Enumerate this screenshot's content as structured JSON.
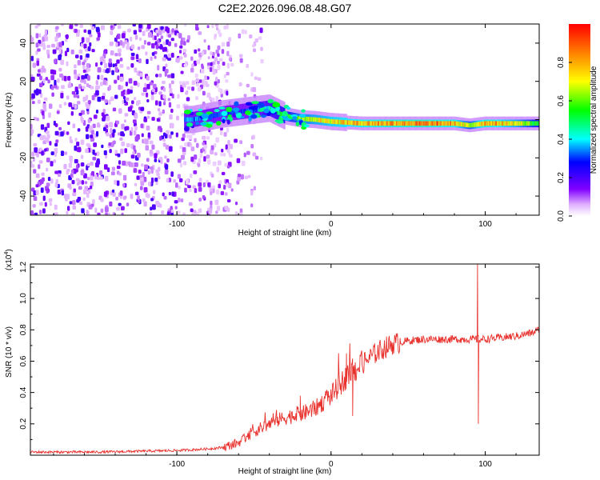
{
  "title": "C2E2.2026.096.08.48.G07",
  "colors": {
    "snr_line": "#e8302c",
    "frame": "#000000",
    "background": "#ffffff"
  },
  "chart_data": [
    {
      "type": "heatmap",
      "title": "C2E2.2026.096.08.48.G07",
      "xlabel": "Height of straight line (km)",
      "ylabel": "Frequency (Hz)",
      "xlim": [
        -195,
        135
      ],
      "ylim": [
        -50,
        50
      ],
      "xticks": [
        -100,
        0,
        100
      ],
      "xtick_labels": [
        "-100",
        "0",
        "100"
      ],
      "yticks": [
        -40,
        -20,
        0,
        20,
        40
      ],
      "ytick_labels": [
        "-40",
        "-20",
        "0",
        "20",
        "40"
      ],
      "colorbar": {
        "label": "Normalized spectral amplitude",
        "range": [
          0.0,
          1.0
        ],
        "ticks": [
          0.0,
          0.2,
          0.4,
          0.6,
          0.8
        ],
        "tick_labels": [
          "0.0",
          "0.2",
          "0.4",
          "0.6",
          "0.8"
        ]
      },
      "ridge": {
        "description_points_height_km": [
          -90,
          -70,
          -50,
          -40,
          -30,
          -20,
          -10,
          0,
          20,
          40,
          60,
          80,
          90,
          100,
          120,
          135
        ],
        "frequency_hz": [
          0,
          3,
          5,
          6,
          2,
          0.5,
          0,
          -1,
          -2,
          -2,
          -2,
          -2,
          -3,
          -2,
          -2,
          -2
        ],
        "amplitude": [
          0.4,
          0.35,
          0.35,
          0.5,
          0.6,
          0.75,
          0.8,
          0.85,
          0.9,
          0.95,
          0.95,
          0.9,
          0.7,
          0.95,
          0.8,
          0.6
        ]
      },
      "noise_region_km": [
        -195,
        -65
      ]
    },
    {
      "type": "line",
      "xlabel": "Height of straight line (km)",
      "ylabel": "SNR (10 * v/v)",
      "y_multiplier_label": "(x10",
      "y_multiplier_exponent": "4",
      "xlim": [
        -195,
        135
      ],
      "ylim": [
        0,
        1.22
      ],
      "xticks": [
        -100,
        0,
        100
      ],
      "xtick_labels": [
        "-100",
        "0",
        "100"
      ],
      "yticks": [
        0.2,
        0.4,
        0.6,
        0.8,
        1.0,
        1.2
      ],
      "ytick_labels": [
        "0.2",
        "0.4",
        "0.6",
        "0.8",
        "1.0",
        "1.2"
      ],
      "series": [
        {
          "name": "SNR",
          "x": [
            -195,
            -150,
            -100,
            -80,
            -70,
            -60,
            -50,
            -40,
            -30,
            -20,
            -10,
            0,
            10,
            20,
            30,
            40,
            50,
            60,
            70,
            80,
            90,
            94,
            95,
            96,
            100,
            110,
            120,
            130,
            135
          ],
          "y": [
            0.02,
            0.02,
            0.03,
            0.04,
            0.05,
            0.08,
            0.15,
            0.2,
            0.24,
            0.26,
            0.3,
            0.38,
            0.5,
            0.58,
            0.66,
            0.71,
            0.73,
            0.74,
            0.74,
            0.74,
            0.74,
            0.74,
            0.74,
            0.74,
            0.74,
            0.75,
            0.76,
            0.78,
            0.8
          ],
          "spikes": [
            {
              "x": -20,
              "y": 0.38
            },
            {
              "x": 10,
              "y": 0.65
            },
            {
              "x": 14,
              "y": 0.25
            },
            {
              "x": 95,
              "y": 1.22
            },
            {
              "x": 95.5,
              "y": 0.2
            }
          ]
        }
      ]
    }
  ]
}
